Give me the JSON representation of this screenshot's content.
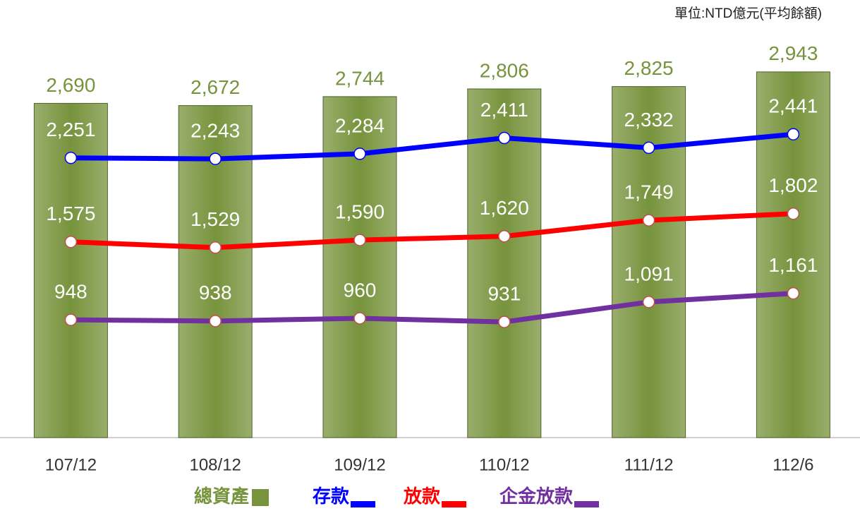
{
  "chart_data": {
    "type": "combo",
    "note": "單位:NTD億元(平均餘額)",
    "categories": [
      "107/12",
      "108/12",
      "109/12",
      "110/12",
      "111/12",
      "112/6"
    ],
    "ylim": [
      0,
      3300
    ],
    "series": [
      {
        "name": "總資產",
        "type": "bar",
        "color": "#77933c",
        "values": [
          2690,
          2672,
          2744,
          2806,
          2825,
          2943
        ],
        "value_labels": [
          "2,690",
          "2,672",
          "2,744",
          "2,806",
          "2,825",
          "2,943"
        ]
      },
      {
        "name": "存款",
        "type": "line",
        "color": "#0000ff",
        "values": [
          2251,
          2243,
          2284,
          2411,
          2332,
          2441
        ],
        "value_labels": [
          "2,251",
          "2,243",
          "2,284",
          "2,411",
          "2,332",
          "2,441"
        ]
      },
      {
        "name": "放款",
        "type": "line",
        "color": "#ff0000",
        "values": [
          1575,
          1529,
          1590,
          1620,
          1749,
          1802
        ],
        "value_labels": [
          "1,575",
          "1,529",
          "1,590",
          "1,620",
          "1,749",
          "1,802"
        ]
      },
      {
        "name": "企金放款",
        "type": "line",
        "color": "#7030a0",
        "values": [
          948,
          938,
          960,
          931,
          1091,
          1161
        ],
        "value_labels": [
          "948",
          "938",
          "960",
          "931",
          "1,091",
          "1,161"
        ]
      }
    ]
  }
}
